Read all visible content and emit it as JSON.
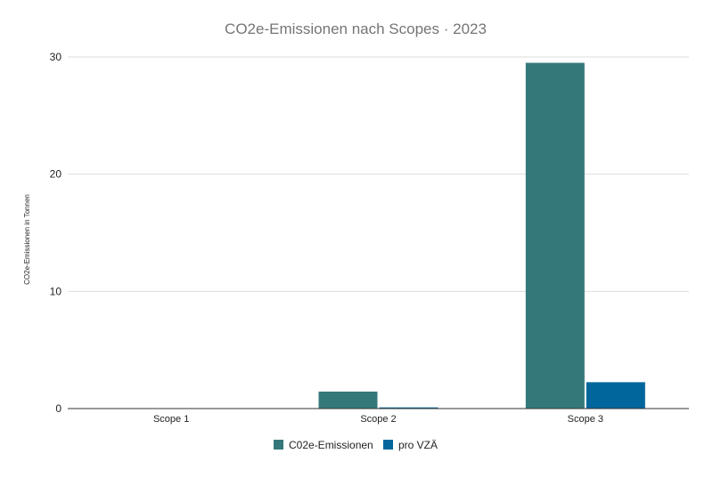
{
  "chart_data": {
    "type": "bar",
    "title": "CO2e-Emissionen nach Scopes · 2023",
    "xlabel": "",
    "ylabel": "CO2e-Emissionen in Tonnen",
    "categories": [
      "Scope 1",
      "Scope 2",
      "Scope 3"
    ],
    "series": [
      {
        "name": "C02e-Emissionen",
        "color": "#34787a",
        "values": [
          0,
          1.45,
          29.5
        ]
      },
      {
        "name": "pro VZÄ",
        "color": "#00669c",
        "values": [
          0,
          0.1,
          2.25
        ]
      }
    ],
    "ylim": [
      0,
      30
    ],
    "yticks": [
      0,
      10,
      20,
      30
    ],
    "grid": true,
    "legend_position": "bottom"
  }
}
